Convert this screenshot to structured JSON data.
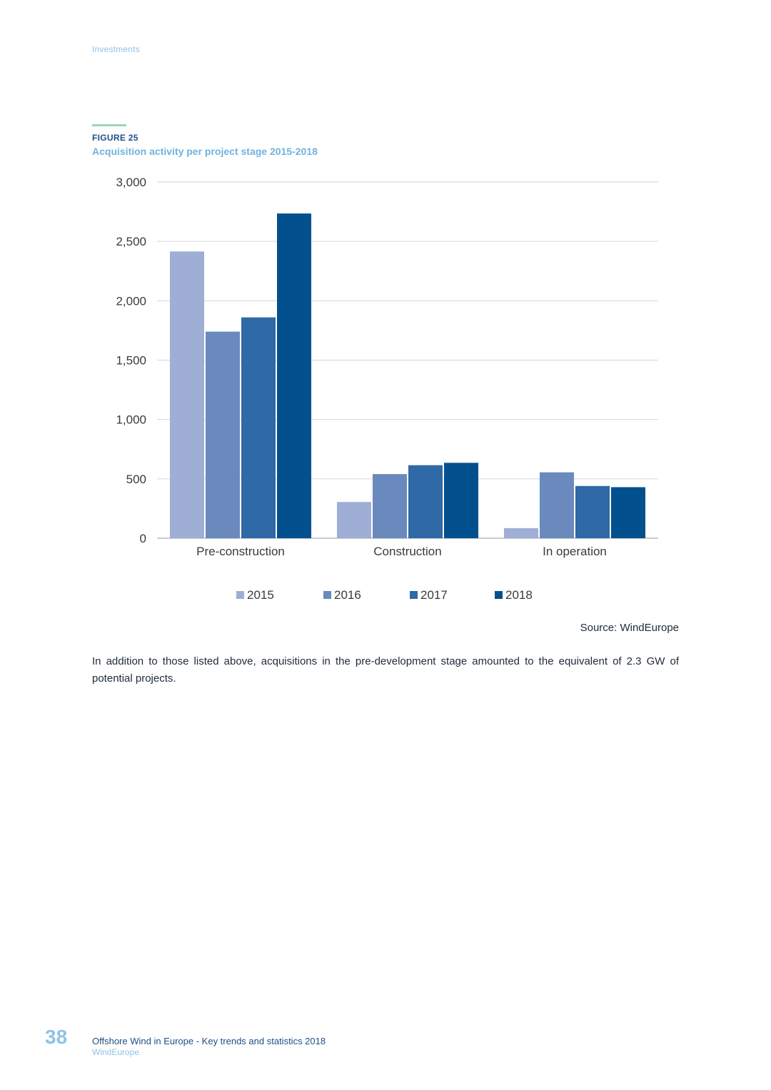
{
  "header": {
    "section": "Investments"
  },
  "figure": {
    "label": "FIGURE 25",
    "title": "Acquisition activity per project stage 2015-2018",
    "source": "Source: WindEurope"
  },
  "body_text": "In addition to those listed above, acquisitions in the pre-development stage amounted to the equivalent of 2.3 GW of potential projects.",
  "footer": {
    "page_number": "38",
    "title": "Offshore Wind in Europe - Key trends and statistics 2018",
    "org": "WindEurope"
  },
  "colors": {
    "accent_rule": "#9ad6b8",
    "heading": "#1c4f87",
    "light_blue": "#8fc3e6"
  },
  "chart_data": {
    "type": "bar",
    "title": "",
    "xlabel": "",
    "ylabel": "",
    "categories": [
      "Pre-construction",
      "Construction",
      "In operation"
    ],
    "series": [
      {
        "name": "2015",
        "color": "#9eaed4",
        "values": [
          2415,
          305,
          85
        ]
      },
      {
        "name": "2016",
        "color": "#6a89bd",
        "values": [
          1740,
          540,
          555
        ]
      },
      {
        "name": "2017",
        "color": "#2f69a6",
        "values": [
          1860,
          615,
          440
        ]
      },
      {
        "name": "2018",
        "color": "#02508e",
        "values": [
          2735,
          635,
          430
        ]
      }
    ],
    "ylim": [
      0,
      3000
    ],
    "yticks": [
      0,
      500,
      1000,
      1500,
      2000,
      2500,
      3000
    ],
    "ytick_labels": [
      "0",
      "500",
      "1,000",
      "1,500",
      "2,000",
      "2,500",
      "3,000"
    ],
    "grid": true,
    "legend_position": "bottom"
  }
}
